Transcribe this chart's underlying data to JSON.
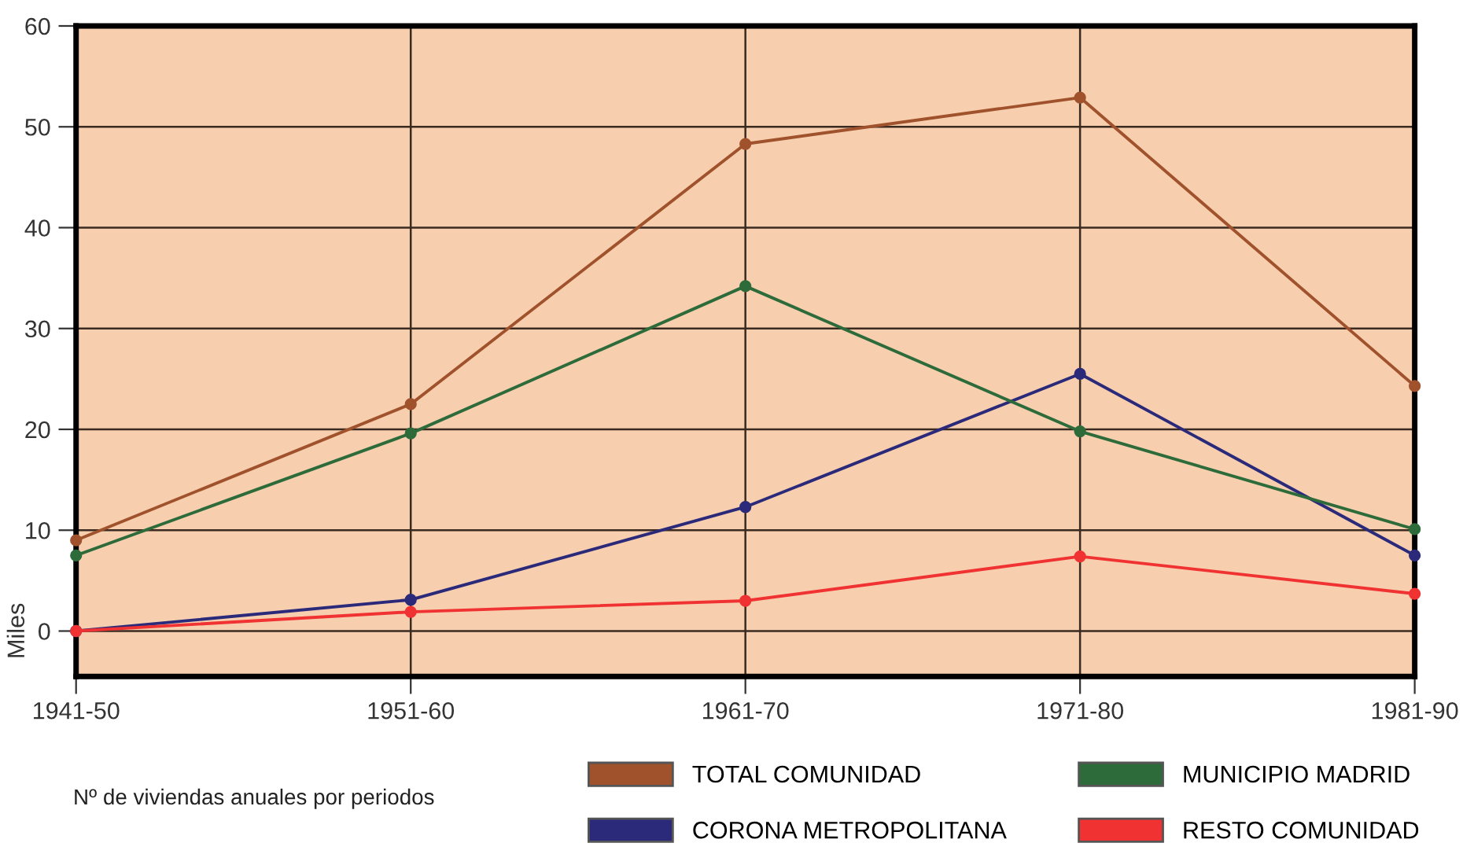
{
  "chart_data": {
    "type": "line",
    "ylabel": "Miles",
    "categories": [
      "1941-50",
      "1951-60",
      "1961-70",
      "1971-80",
      "1981-90"
    ],
    "series": [
      {
        "name": "TOTAL COMUNIDAD",
        "color": "#a0522d",
        "values": [
          9,
          22.5,
          48.3,
          52.9,
          24.3
        ]
      },
      {
        "name": "CORONA METROPOLITANA",
        "color": "#2b2a7a",
        "values": [
          0,
          3.1,
          12.3,
          25.5,
          7.5
        ]
      },
      {
        "name": "MUNICIPIO MADRID",
        "color": "#2e6b3a",
        "values": [
          7.5,
          19.6,
          34.2,
          19.8,
          10.1
        ]
      },
      {
        "name": "RESTO COMUNIDAD",
        "color": "#f03232",
        "values": [
          0,
          1.9,
          3.0,
          7.4,
          3.7
        ]
      }
    ],
    "ylim": [
      -4.5,
      60
    ],
    "yticks": [
      0,
      10,
      20,
      30,
      40,
      50,
      60
    ],
    "grid": true,
    "legend": "bottom right",
    "marker": "circle",
    "line_style": "solid",
    "annotations": [
      "Nº de viviendas anuales por periodos"
    ]
  }
}
